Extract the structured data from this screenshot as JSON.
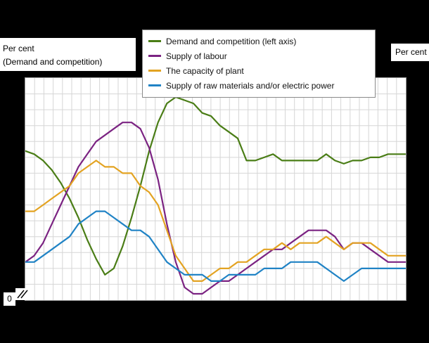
{
  "page": {
    "background": "#000000",
    "left_axis_label": {
      "line1": "Per cent",
      "line2": "(Demand  and competition)"
    },
    "right_axis_label": "Per cent",
    "origin_label": "0"
  },
  "chart_data": {
    "type": "line",
    "title": "",
    "xlabel": "",
    "ylabel_left": "Per cent (Demand and competition)",
    "ylabel_right": "Per cent",
    "left_ylim": [
      0,
      70
    ],
    "right_ylim": [
      0,
      35
    ],
    "legend_position": "top",
    "grid": {
      "vlines": 41,
      "hlines": 14,
      "color": "#d6d6d6",
      "on": true
    },
    "series": [
      {
        "name": "Demand and competition (left axis)",
        "color": "#4a7d16",
        "axis": "left",
        "values": [
          47,
          46,
          44,
          41,
          37,
          32,
          26,
          19,
          13,
          8,
          10,
          17,
          26,
          36,
          47,
          56,
          62,
          64,
          63,
          62,
          59,
          58,
          55,
          53,
          51,
          44,
          44,
          45,
          46,
          44,
          44,
          44,
          44,
          44,
          46,
          44,
          43,
          44,
          44,
          45,
          45,
          46,
          46,
          46
        ]
      },
      {
        "name": "Supply of labour",
        "color": "#7b2382",
        "axis": "right",
        "values": [
          6,
          7,
          9,
          12,
          15,
          18,
          21,
          23,
          25,
          26,
          27,
          28,
          28,
          27,
          24,
          19,
          12,
          6,
          2,
          1,
          1,
          2,
          3,
          3,
          4,
          5,
          6,
          7,
          8,
          8,
          9,
          10,
          11,
          11,
          11,
          10,
          8,
          9,
          9,
          8,
          7,
          6,
          6,
          6
        ]
      },
      {
        "name": "The capacity of plant",
        "color": "#e3a322",
        "axis": "right",
        "values": [
          14,
          14,
          15,
          16,
          17,
          18,
          20,
          21,
          22,
          21,
          21,
          20,
          20,
          18,
          17,
          15,
          11,
          7,
          5,
          3,
          3,
          4,
          5,
          5,
          6,
          6,
          7,
          8,
          8,
          9,
          8,
          9,
          9,
          9,
          10,
          9,
          8,
          9,
          9,
          9,
          8,
          7,
          7,
          7
        ]
      },
      {
        "name": "Supply of raw materials and/or electric power",
        "color": "#2083c5",
        "axis": "right",
        "values": [
          6,
          6,
          7,
          8,
          9,
          10,
          12,
          13,
          14,
          14,
          13,
          12,
          11,
          11,
          10,
          8,
          6,
          5,
          4,
          4,
          4,
          3,
          3,
          4,
          4,
          4,
          4,
          5,
          5,
          5,
          6,
          6,
          6,
          6,
          5,
          4,
          3,
          4,
          5,
          5,
          5,
          5,
          5,
          5
        ]
      }
    ]
  }
}
